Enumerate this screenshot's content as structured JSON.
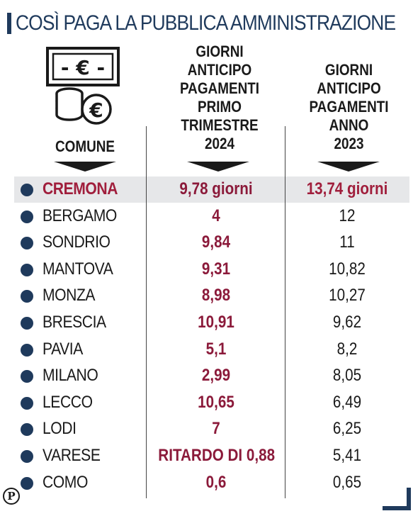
{
  "title": "COSÌ PAGA LA PUBBLICA AMMINISTRAZIONE",
  "colors": {
    "accent": "#1f3a5c",
    "value_red": "#8b1a3a",
    "highlight_bg": "#e6e7e9"
  },
  "icons": {
    "banknote": "euro-banknote-icon",
    "coins": "euro-coins-icon"
  },
  "banknote_symbol": "- € -",
  "coin_symbol": "€",
  "logo_letter": "P",
  "chart_data": {
    "type": "table",
    "columns": [
      "COMUNE",
      "GIORNI ANTICIPO PAGAMENTI PRIMO TRIMESTRE 2024",
      "GIORNI ANTICIPO PAGAMENTI ANNO 2023"
    ],
    "headers": {
      "comune": "COMUNE",
      "col1_lines": [
        "GIORNI",
        "ANTICIPO",
        "PAGAMENTI",
        "PRIMO",
        "TRIMESTRE",
        "2024"
      ],
      "col2_lines": [
        "GIORNI",
        "ANTICIPO",
        "PAGAMENTI",
        "ANNO",
        "2023"
      ]
    },
    "rows": [
      {
        "city": "CREMONA",
        "q1_2024": "9,78 giorni",
        "year_2023": "13,74 giorni",
        "highlight": true
      },
      {
        "city": "BERGAMO",
        "q1_2024": "4",
        "year_2023": "12"
      },
      {
        "city": "SONDRIO",
        "q1_2024": "9,84",
        "year_2023": "11"
      },
      {
        "city": "MANTOVA",
        "q1_2024": "9,31",
        "year_2023": "10,82"
      },
      {
        "city": "MONZA",
        "q1_2024": "8,98",
        "year_2023": "10,27"
      },
      {
        "city": "BRESCIA",
        "q1_2024": "10,91",
        "year_2023": "9,62"
      },
      {
        "city": "PAVIA",
        "q1_2024": "5,1",
        "year_2023": "8,2"
      },
      {
        "city": "MILANO",
        "q1_2024": "2,99",
        "year_2023": "8,05"
      },
      {
        "city": "LECCO",
        "q1_2024": "10,65",
        "year_2023": "6,49"
      },
      {
        "city": "LODI",
        "q1_2024": "7",
        "year_2023": "6,25"
      },
      {
        "city": "VARESE",
        "q1_2024": "RITARDO DI 0,88",
        "year_2023": "5,41"
      },
      {
        "city": "COMO",
        "q1_2024": "0,6",
        "year_2023": "0,65"
      }
    ]
  }
}
